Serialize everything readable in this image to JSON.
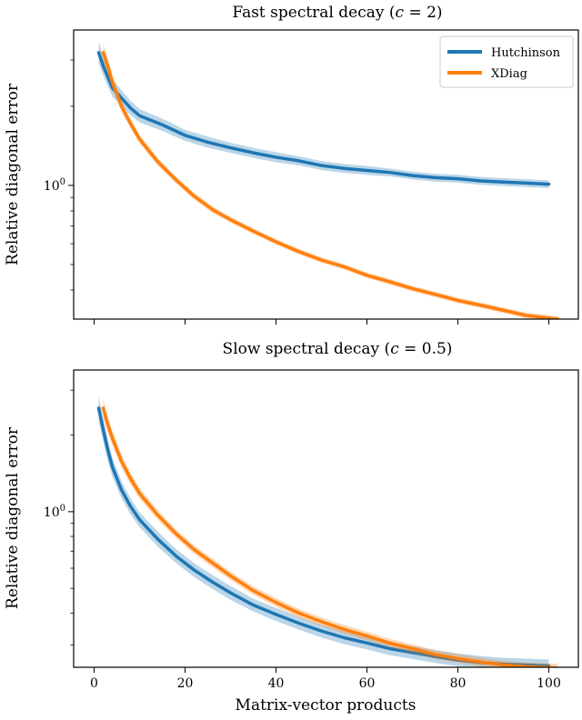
{
  "colors": {
    "hutchinson": "#1f77b4",
    "xdiag": "#ff7f0e"
  },
  "shared_xlabel": "Matrix-vector products",
  "chart_data": [
    {
      "type": "line",
      "title_main": "Fast spectral decay (",
      "title_var": "c",
      "title_rest": " = 2)",
      "ylabel": "Relative diagonal error",
      "ytick_labels": [
        {
          "value": 1.0,
          "label": "10",
          "exp": "0"
        }
      ],
      "xlim": [
        -4.5,
        106.5
      ],
      "ylim": [
        0.31,
        3.9
      ],
      "yscale": "log",
      "legend": {
        "position": "top-right",
        "entries": [
          "Hutchinson",
          "XDiag"
        ]
      },
      "series": [
        {
          "name": "Hutchinson",
          "color": "#1f77b4",
          "x": [
            1,
            2,
            4,
            6,
            8,
            10,
            15,
            20,
            25,
            30,
            35,
            40,
            45,
            50,
            55,
            60,
            65,
            70,
            75,
            80,
            85,
            90,
            95,
            100
          ],
          "y": [
            3.2,
            2.85,
            2.35,
            2.15,
            1.97,
            1.84,
            1.7,
            1.55,
            1.46,
            1.39,
            1.33,
            1.28,
            1.24,
            1.19,
            1.16,
            1.14,
            1.12,
            1.09,
            1.07,
            1.06,
            1.04,
            1.03,
            1.02,
            1.01
          ],
          "band": [
            0.1,
            0.09,
            0.08,
            0.07,
            0.065,
            0.06,
            0.055,
            0.05,
            0.05,
            0.045,
            0.045,
            0.045,
            0.04,
            0.04,
            0.04,
            0.04,
            0.035,
            0.035,
            0.035,
            0.035,
            0.035,
            0.035,
            0.035,
            0.035
          ]
        },
        {
          "name": "XDiag",
          "color": "#ff7f0e",
          "x": [
            2,
            3,
            4,
            6,
            8,
            10,
            14,
            18,
            22,
            26,
            30,
            35,
            40,
            45,
            50,
            55,
            60,
            65,
            70,
            75,
            80,
            85,
            90,
            95,
            102
          ],
          "y": [
            3.2,
            2.85,
            2.48,
            2.0,
            1.72,
            1.5,
            1.23,
            1.05,
            0.91,
            0.81,
            0.74,
            0.67,
            0.61,
            0.56,
            0.52,
            0.49,
            0.455,
            0.43,
            0.405,
            0.385,
            0.365,
            0.35,
            0.335,
            0.32,
            0.31
          ],
          "band": [
            0.08,
            0.07,
            0.06,
            0.05,
            0.045,
            0.04,
            0.035,
            0.03,
            0.03,
            0.03,
            0.025,
            0.025,
            0.025,
            0.025,
            0.025,
            0.025,
            0.025,
            0.025,
            0.025,
            0.025,
            0.025,
            0.025,
            0.025,
            0.025,
            0.025
          ]
        }
      ]
    },
    {
      "type": "line",
      "title_main": "Slow spectral decay (",
      "title_var": "c",
      "title_rest": " = 0.5)",
      "ylabel": "Relative diagonal error",
      "xlabel": "Matrix-vector products",
      "xticks": [
        0,
        20,
        40,
        60,
        80,
        100
      ],
      "ytick_labels": [
        {
          "value": 1.0,
          "label": "10",
          "exp": "0"
        }
      ],
      "xlim": [
        -4.5,
        106.5
      ],
      "ylim": [
        0.245,
        3.6
      ],
      "yscale": "log",
      "series": [
        {
          "name": "Hutchinson",
          "color": "#1f77b4",
          "x": [
            1,
            2,
            3,
            4,
            6,
            8,
            10,
            14,
            18,
            22,
            26,
            30,
            35,
            40,
            45,
            50,
            55,
            60,
            65,
            70,
            75,
            80,
            85,
            90,
            95,
            100
          ],
          "y": [
            2.55,
            2.1,
            1.75,
            1.5,
            1.22,
            1.05,
            0.93,
            0.78,
            0.67,
            0.59,
            0.53,
            0.48,
            0.43,
            0.395,
            0.365,
            0.34,
            0.32,
            0.305,
            0.29,
            0.28,
            0.27,
            0.262,
            0.256,
            0.252,
            0.25,
            0.248
          ],
          "band": [
            0.12,
            0.11,
            0.1,
            0.09,
            0.08,
            0.075,
            0.07,
            0.07,
            0.065,
            0.065,
            0.065,
            0.065,
            0.06,
            0.06,
            0.06,
            0.06,
            0.06,
            0.06,
            0.06,
            0.06,
            0.06,
            0.06,
            0.06,
            0.06,
            0.06,
            0.06
          ]
        },
        {
          "name": "XDiag",
          "color": "#ff7f0e",
          "x": [
            2,
            3,
            4,
            6,
            8,
            10,
            14,
            18,
            22,
            26,
            30,
            35,
            40,
            45,
            50,
            55,
            60,
            65,
            70,
            75,
            80,
            85,
            90,
            95,
            102
          ],
          "y": [
            2.55,
            2.2,
            1.95,
            1.58,
            1.35,
            1.18,
            0.97,
            0.82,
            0.71,
            0.63,
            0.56,
            0.49,
            0.44,
            0.4,
            0.37,
            0.345,
            0.325,
            0.305,
            0.29,
            0.275,
            0.265,
            0.257,
            0.25,
            0.246,
            0.243
          ],
          "band": [
            0.09,
            0.08,
            0.07,
            0.06,
            0.055,
            0.05,
            0.045,
            0.04,
            0.04,
            0.04,
            0.04,
            0.04,
            0.04,
            0.04,
            0.04,
            0.04,
            0.04,
            0.04,
            0.04,
            0.04,
            0.04,
            0.04,
            0.04,
            0.04,
            0.04
          ]
        }
      ]
    }
  ]
}
